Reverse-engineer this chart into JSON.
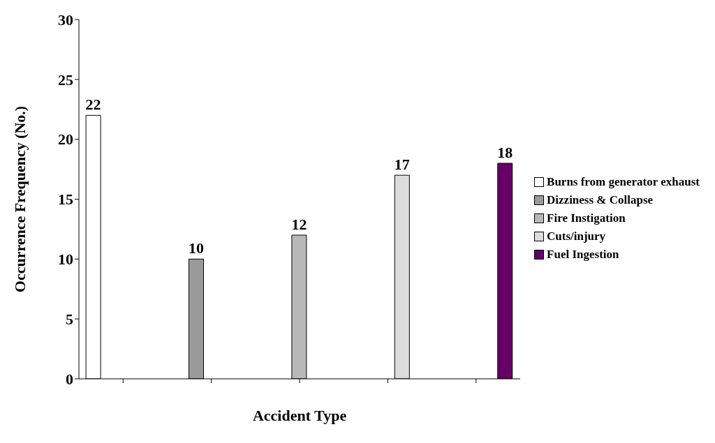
{
  "chart_data": {
    "type": "bar",
    "xlabel": "Accident Type",
    "ylabel": "Occurrence Frequency (No.)",
    "categories": [
      null,
      null,
      null,
      null,
      null
    ],
    "series": [
      {
        "name": "Burns from generator exhaust",
        "color": "#ffffff",
        "values": [
          22,
          null,
          null,
          null,
          null
        ]
      },
      {
        "name": "Dizziness & Collapse",
        "color": "#9a9a9a",
        "values": [
          null,
          10,
          null,
          null,
          null
        ]
      },
      {
        "name": "Fire Instigation",
        "color": "#b8b8b8",
        "values": [
          null,
          null,
          12,
          null,
          null
        ]
      },
      {
        "name": "Cuts/injury",
        "color": "#dcdcdc",
        "values": [
          null,
          null,
          null,
          17,
          null
        ]
      },
      {
        "name": "Fuel Ingestion",
        "color": "#660066",
        "values": [
          null,
          null,
          null,
          null,
          18
        ]
      }
    ],
    "ylim": [
      0,
      30
    ],
    "yticks": [
      0,
      5,
      10,
      15,
      20,
      25,
      30
    ],
    "grid": false,
    "legend": "right",
    "data_labels": true
  }
}
